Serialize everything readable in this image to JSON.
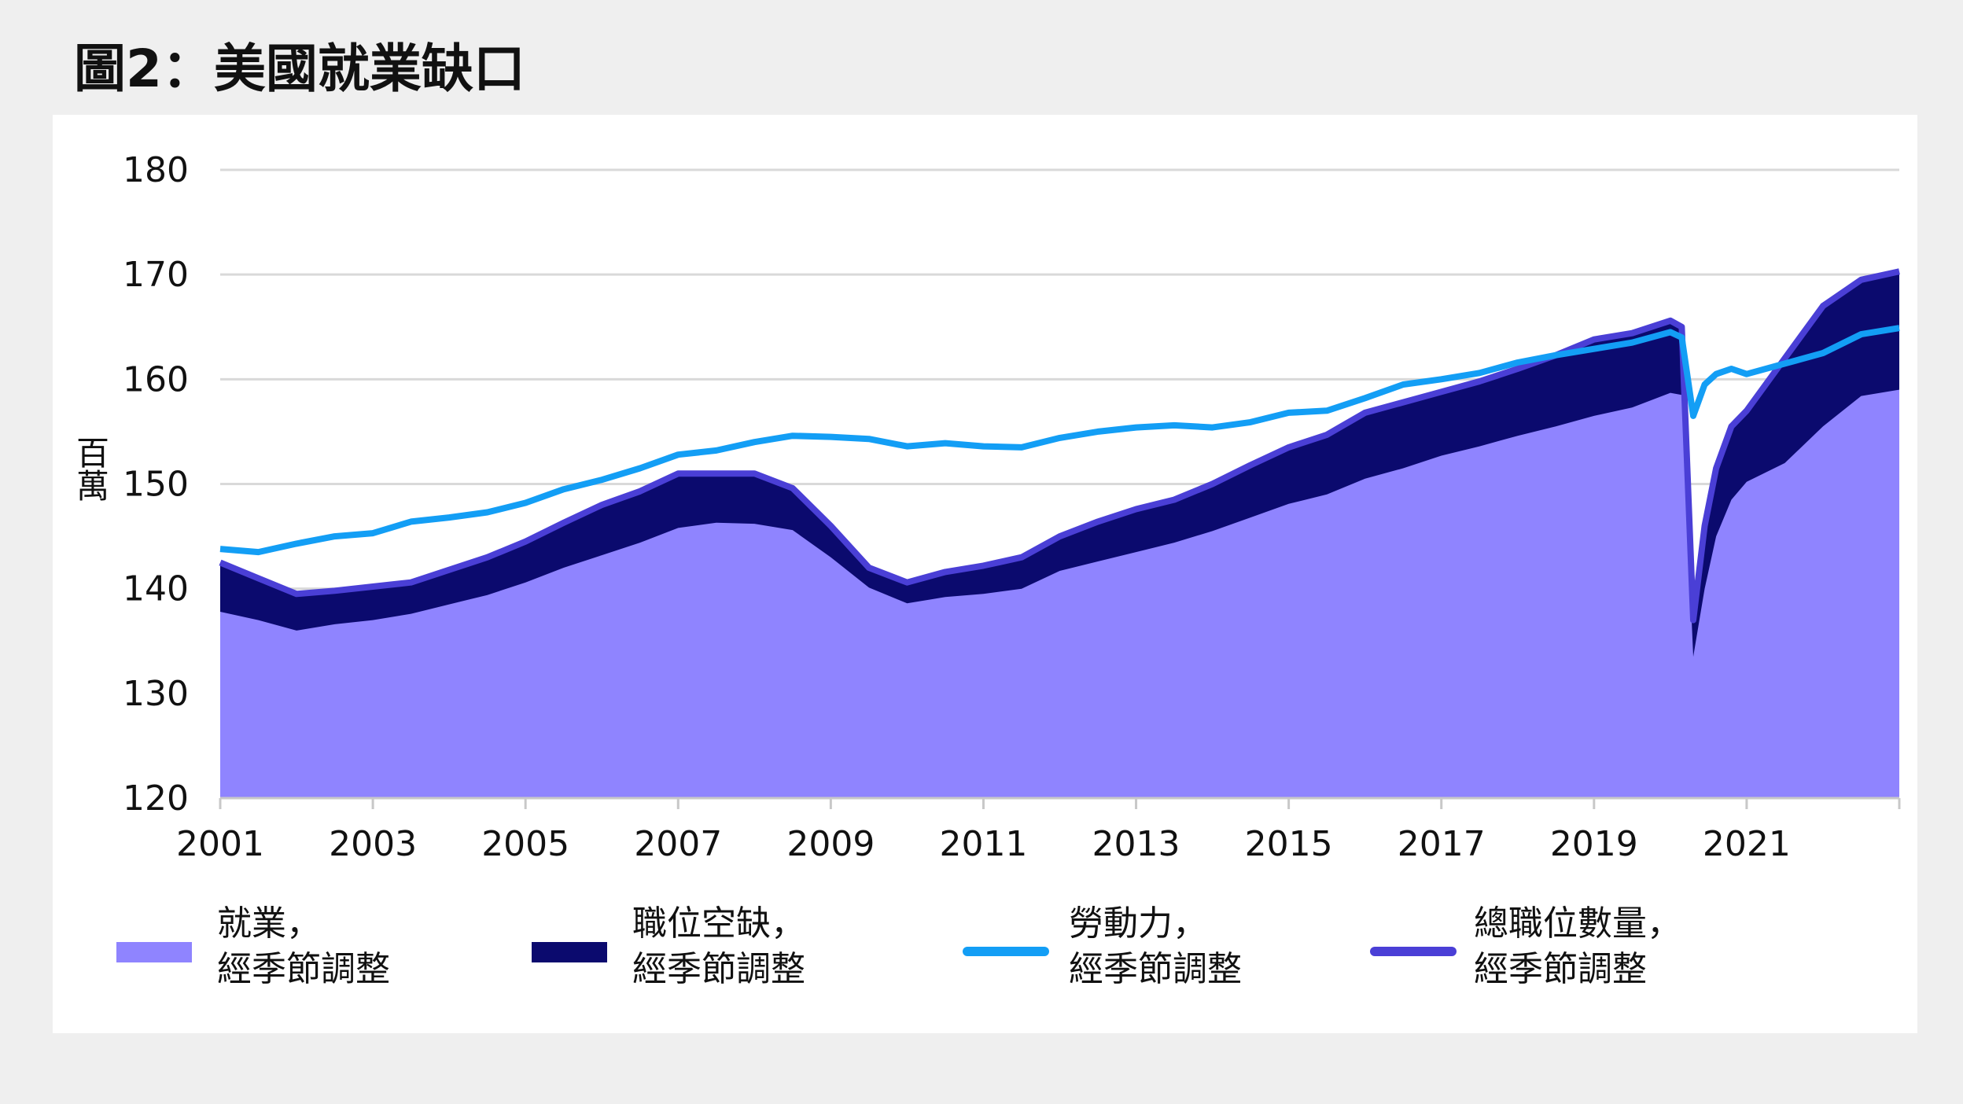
{
  "title": "圖2：美國就業缺口",
  "colors": {
    "employment": "#8f84ff",
    "vacancies": "#0b0a6e",
    "labor_force": "#139ef5",
    "total_jobs": "#4a3fd6",
    "grid": "#d9d9d9"
  },
  "legend": [
    {
      "key": "employment",
      "line1": "就業，",
      "line2": "經季節調整",
      "style": "area"
    },
    {
      "key": "vacancies",
      "line1": "職位空缺，",
      "line2": "經季節調整",
      "style": "area"
    },
    {
      "key": "labor_force",
      "line1": "勞動力，",
      "line2": "經季節調整",
      "style": "line"
    },
    {
      "key": "total_jobs",
      "line1": "總職位數量，",
      "line2": "經季節調整",
      "style": "line"
    }
  ],
  "chart_data": {
    "type": "area",
    "ylabel": "百萬",
    "ylim": [
      120,
      180
    ],
    "yticks": [
      "120",
      "130",
      "140",
      "150",
      "160",
      "170",
      "180"
    ],
    "xlim": [
      2001.0,
      2023.0
    ],
    "xticks": [
      "2001",
      "2003",
      "2005",
      "2007",
      "2009",
      "2011",
      "2013",
      "2015",
      "2017",
      "2019",
      "2021"
    ],
    "grid": true,
    "legend_position": "bottom",
    "series": [
      {
        "name": "就業，經季節調整",
        "key": "employment",
        "points": [
          [
            2001.0,
            137.8
          ],
          [
            2001.5,
            137.0
          ],
          [
            2002.0,
            136.0
          ],
          [
            2002.5,
            136.6
          ],
          [
            2003.0,
            137.0
          ],
          [
            2003.5,
            137.6
          ],
          [
            2004.0,
            138.5
          ],
          [
            2004.5,
            139.4
          ],
          [
            2005.0,
            140.6
          ],
          [
            2005.5,
            142.0
          ],
          [
            2006.0,
            143.2
          ],
          [
            2006.5,
            144.4
          ],
          [
            2007.0,
            145.8
          ],
          [
            2007.5,
            146.3
          ],
          [
            2008.0,
            146.2
          ],
          [
            2008.5,
            145.6
          ],
          [
            2009.0,
            143.0
          ],
          [
            2009.5,
            140.1
          ],
          [
            2010.0,
            138.6
          ],
          [
            2010.5,
            139.2
          ],
          [
            2011.0,
            139.5
          ],
          [
            2011.5,
            140.0
          ],
          [
            2012.0,
            141.7
          ],
          [
            2012.5,
            142.6
          ],
          [
            2013.0,
            143.5
          ],
          [
            2013.5,
            144.4
          ],
          [
            2014.0,
            145.5
          ],
          [
            2014.5,
            146.8
          ],
          [
            2015.0,
            148.1
          ],
          [
            2015.5,
            149.0
          ],
          [
            2016.0,
            150.5
          ],
          [
            2016.5,
            151.5
          ],
          [
            2017.0,
            152.7
          ],
          [
            2017.5,
            153.6
          ],
          [
            2018.0,
            154.6
          ],
          [
            2018.5,
            155.5
          ],
          [
            2019.0,
            156.5
          ],
          [
            2019.5,
            157.3
          ],
          [
            2020.0,
            158.7
          ],
          [
            2020.15,
            158.5
          ],
          [
            2020.3,
            133.5
          ],
          [
            2020.45,
            140.0
          ],
          [
            2020.6,
            145.0
          ],
          [
            2020.8,
            148.5
          ],
          [
            2021.0,
            150.2
          ],
          [
            2021.5,
            152.0
          ],
          [
            2022.0,
            155.5
          ],
          [
            2022.5,
            158.4
          ],
          [
            2023.0,
            159.0
          ]
        ]
      },
      {
        "name": "總職位數量，經季節調整",
        "key": "total_jobs",
        "points": [
          [
            2001.0,
            142.5
          ],
          [
            2001.5,
            141.0
          ],
          [
            2002.0,
            139.5
          ],
          [
            2002.5,
            139.8
          ],
          [
            2003.0,
            140.2
          ],
          [
            2003.5,
            140.6
          ],
          [
            2004.0,
            141.8
          ],
          [
            2004.5,
            143.0
          ],
          [
            2005.0,
            144.5
          ],
          [
            2005.5,
            146.3
          ],
          [
            2006.0,
            148.0
          ],
          [
            2006.5,
            149.3
          ],
          [
            2007.0,
            151.0
          ],
          [
            2007.5,
            151.0
          ],
          [
            2008.0,
            151.0
          ],
          [
            2008.5,
            149.6
          ],
          [
            2009.0,
            146.0
          ],
          [
            2009.5,
            142.0
          ],
          [
            2010.0,
            140.6
          ],
          [
            2010.5,
            141.6
          ],
          [
            2011.0,
            142.2
          ],
          [
            2011.5,
            143.0
          ],
          [
            2012.0,
            145.0
          ],
          [
            2012.5,
            146.4
          ],
          [
            2013.0,
            147.6
          ],
          [
            2013.5,
            148.5
          ],
          [
            2014.0,
            150.0
          ],
          [
            2014.5,
            151.8
          ],
          [
            2015.0,
            153.5
          ],
          [
            2015.5,
            154.7
          ],
          [
            2016.0,
            156.8
          ],
          [
            2016.5,
            157.8
          ],
          [
            2017.0,
            158.8
          ],
          [
            2017.5,
            159.8
          ],
          [
            2018.0,
            161.0
          ],
          [
            2018.5,
            162.3
          ],
          [
            2019.0,
            163.8
          ],
          [
            2019.5,
            164.4
          ],
          [
            2020.0,
            165.6
          ],
          [
            2020.15,
            165.0
          ],
          [
            2020.3,
            137.0
          ],
          [
            2020.45,
            146.0
          ],
          [
            2020.6,
            151.5
          ],
          [
            2020.8,
            155.5
          ],
          [
            2021.0,
            157.0
          ],
          [
            2021.5,
            162.0
          ],
          [
            2022.0,
            167.0
          ],
          [
            2022.5,
            169.5
          ],
          [
            2023.0,
            170.3
          ]
        ]
      },
      {
        "name": "勞動力，經季節調整",
        "key": "labor_force",
        "points": [
          [
            2001.0,
            143.8
          ],
          [
            2001.5,
            143.5
          ],
          [
            2002.0,
            144.3
          ],
          [
            2002.5,
            145.0
          ],
          [
            2003.0,
            145.3
          ],
          [
            2003.5,
            146.4
          ],
          [
            2004.0,
            146.8
          ],
          [
            2004.5,
            147.3
          ],
          [
            2005.0,
            148.2
          ],
          [
            2005.5,
            149.5
          ],
          [
            2006.0,
            150.4
          ],
          [
            2006.5,
            151.5
          ],
          [
            2007.0,
            152.8
          ],
          [
            2007.5,
            153.2
          ],
          [
            2008.0,
            154.0
          ],
          [
            2008.5,
            154.6
          ],
          [
            2009.0,
            154.5
          ],
          [
            2009.5,
            154.3
          ],
          [
            2010.0,
            153.6
          ],
          [
            2010.5,
            153.9
          ],
          [
            2011.0,
            153.6
          ],
          [
            2011.5,
            153.5
          ],
          [
            2012.0,
            154.4
          ],
          [
            2012.5,
            155.0
          ],
          [
            2013.0,
            155.4
          ],
          [
            2013.5,
            155.6
          ],
          [
            2014.0,
            155.4
          ],
          [
            2014.5,
            155.9
          ],
          [
            2015.0,
            156.8
          ],
          [
            2015.5,
            157.0
          ],
          [
            2016.0,
            158.2
          ],
          [
            2016.5,
            159.5
          ],
          [
            2017.0,
            160.0
          ],
          [
            2017.5,
            160.6
          ],
          [
            2018.0,
            161.6
          ],
          [
            2018.5,
            162.3
          ],
          [
            2019.0,
            162.9
          ],
          [
            2019.5,
            163.5
          ],
          [
            2020.0,
            164.5
          ],
          [
            2020.15,
            164.0
          ],
          [
            2020.3,
            156.5
          ],
          [
            2020.45,
            159.5
          ],
          [
            2020.6,
            160.5
          ],
          [
            2020.8,
            161.0
          ],
          [
            2021.0,
            160.5
          ],
          [
            2021.5,
            161.5
          ],
          [
            2022.0,
            162.5
          ],
          [
            2022.5,
            164.3
          ],
          [
            2023.0,
            164.9
          ]
        ]
      }
    ]
  }
}
